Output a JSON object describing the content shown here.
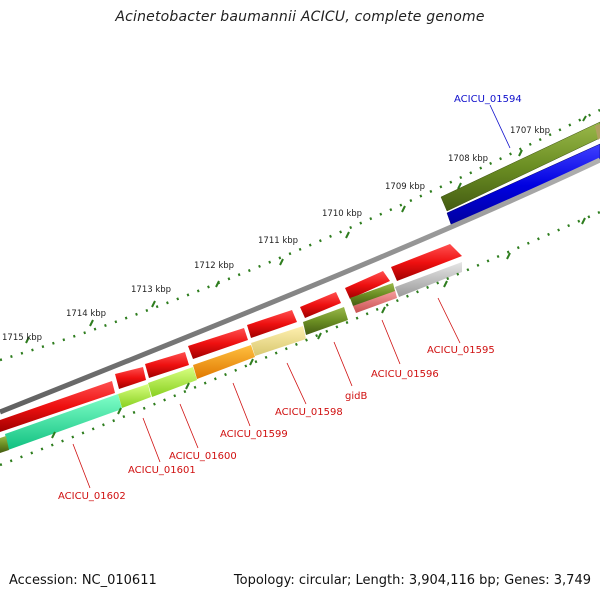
{
  "title": "Acinetobacter baumannii ACICU, complete genome",
  "footer": {
    "accession": "Accession: NC_010611",
    "summary": "Topology: circular; Length: 3,904,116 bp; Genes: 3,749"
  },
  "ticks": [
    "1707 kbp",
    "1708 kbp",
    "1709 kbp",
    "1710 kbp",
    "1711 kbp",
    "1712 kbp",
    "1713 kbp",
    "1714 kbp",
    "1715 kbp"
  ],
  "gene_labels": [
    "ACICU_01594",
    "ACICU_01595",
    "ACICU_01596",
    "gidB",
    "ACICU_01598",
    "ACICU_01599",
    "ACICU_01600",
    "ACICU_01601",
    "ACICU_01602"
  ],
  "colors": {
    "backbone": "#7a7a7a",
    "tick": "#2e7d1e",
    "gene_forward": "#e01010",
    "label_red": "#d01010",
    "label_blue": "#1010cc",
    "highlight_blue": "#0000dd",
    "olive": "#6b8e23"
  }
}
